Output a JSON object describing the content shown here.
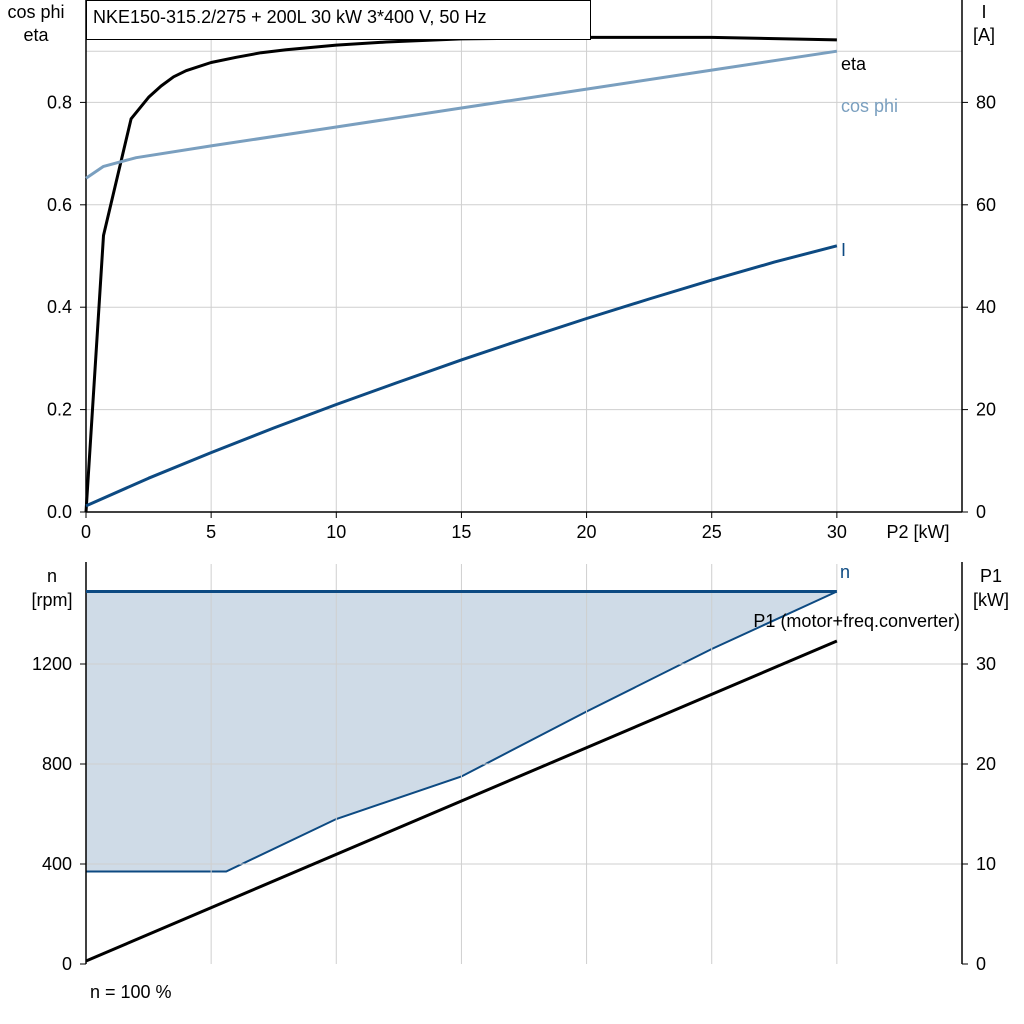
{
  "colors": {
    "eta": "#000000",
    "cos_phi": "#7a9fbf",
    "current": "#0d4a82",
    "n": "#0d4a82",
    "p1": "#000000",
    "band_fill": "#cfdbe7",
    "grid": "#cfcfcf"
  },
  "footer_note": "n = 100 %",
  "chart_data": [
    {
      "type": "line",
      "title": "NKE150-315.2/275 + 200L   30 kW   3*400 V, 50 Hz",
      "xlabel": "P2 [kW]",
      "x_ticks": [
        "0",
        "5",
        "10",
        "15",
        "20",
        "25",
        "30"
      ],
      "xlim": [
        0,
        35
      ],
      "grid": true,
      "left_axis": {
        "label_line1": "cos phi",
        "label_line2": "eta",
        "ylim": [
          0,
          1.0
        ],
        "ticks": [
          0.0,
          0.2,
          0.4,
          0.6,
          0.8
        ],
        "tick_labels": [
          "0.0",
          "0.2",
          "0.4",
          "0.6",
          "0.8"
        ]
      },
      "right_axis": {
        "label_line1": "I",
        "label_line2": "[A]",
        "ylim": [
          0,
          100
        ],
        "ticks": [
          0,
          20,
          40,
          60,
          80
        ],
        "tick_labels": [
          "0",
          "20",
          "40",
          "60",
          "80"
        ]
      },
      "series": [
        {
          "name": "eta",
          "axis": "left",
          "x": [
            0,
            0.7,
            1.8,
            2.5,
            3.0,
            3.5,
            4.0,
            5.0,
            6.0,
            7.0,
            8.0,
            10.0,
            12.0,
            15.0,
            20.0,
            25.0,
            30.0
          ],
          "y": [
            0.0,
            0.54,
            0.768,
            0.81,
            0.832,
            0.85,
            0.862,
            0.878,
            0.888,
            0.897,
            0.903,
            0.912,
            0.918,
            0.924,
            0.927,
            0.927,
            0.922
          ]
        },
        {
          "name": "cos phi",
          "axis": "left",
          "x": [
            0,
            0.7,
            2.0,
            5.0,
            10.0,
            15.0,
            20.0,
            25.0,
            30.0
          ],
          "y": [
            0.652,
            0.675,
            0.692,
            0.715,
            0.752,
            0.789,
            0.826,
            0.863,
            0.9
          ]
        },
        {
          "name": "I",
          "axis": "right",
          "x": [
            0,
            2.5,
            5.0,
            7.5,
            10.0,
            12.5,
            15.0,
            17.5,
            20.0,
            22.5,
            25.0,
            27.5,
            30.0
          ],
          "y": [
            1.2,
            6.6,
            11.6,
            16.4,
            21.0,
            25.4,
            29.7,
            33.8,
            37.8,
            41.6,
            45.3,
            48.8,
            52.0
          ]
        }
      ]
    },
    {
      "type": "area",
      "xlim": [
        0,
        35
      ],
      "grid": true,
      "left_axis": {
        "label_line1": "n",
        "label_line2": "[rpm]",
        "ylim": [
          0,
          1600
        ],
        "ticks": [
          0,
          400,
          800,
          1200
        ],
        "tick_labels": [
          "0",
          "400",
          "800",
          "1200"
        ]
      },
      "right_axis": {
        "label_line1": "P1",
        "label_line2": "[kW]",
        "ylim": [
          0,
          40
        ],
        "ticks": [
          0,
          10,
          20,
          30
        ],
        "tick_labels": [
          "0",
          "10",
          "20",
          "30"
        ]
      },
      "operating_band": {
        "x": [
          0,
          5.6,
          10.0,
          15.0,
          20.0,
          25.0,
          30.0
        ],
        "n_min": [
          370,
          370,
          580,
          750,
          1010,
          1260,
          1490
        ]
      },
      "series": [
        {
          "name": "n",
          "axis": "left",
          "x": [
            0,
            30.0
          ],
          "y": [
            1490,
            1490
          ]
        },
        {
          "name": "P1 (motor+freq.converter)",
          "axis": "right",
          "x": [
            0,
            30.0
          ],
          "y": [
            0.3,
            32.3
          ]
        }
      ]
    }
  ]
}
